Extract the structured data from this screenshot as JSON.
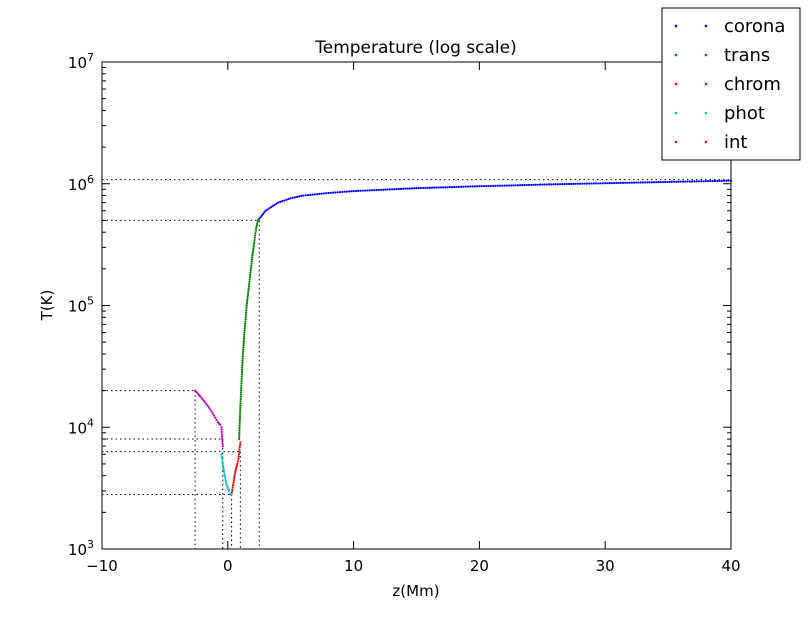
{
  "chart_data": {
    "type": "scatter",
    "title": "Temperature (log scale)",
    "xlabel": "z(Mm)",
    "ylabel": "T(K)",
    "xlim": [
      -10,
      40
    ],
    "ylim": [
      1000,
      10000000
    ],
    "yscale": "log",
    "grid": false,
    "legend_position": "top-right",
    "x_ticks": [
      {
        "value": -10,
        "label": "−10"
      },
      {
        "value": 0,
        "label": "0"
      },
      {
        "value": 10,
        "label": "10"
      },
      {
        "value": 20,
        "label": "20"
      },
      {
        "value": 30,
        "label": "30"
      },
      {
        "value": 40,
        "label": "40"
      }
    ],
    "y_ticks": [
      {
        "value": 1000,
        "base": "10",
        "exp": "3"
      },
      {
        "value": 10000,
        "base": "10",
        "exp": "4"
      },
      {
        "value": 100000,
        "base": "10",
        "exp": "5"
      },
      {
        "value": 1000000,
        "base": "10",
        "exp": "6"
      },
      {
        "value": 10000000,
        "base": "10",
        "exp": "7"
      }
    ],
    "series": [
      {
        "name": "corona",
        "color": "#0000ff",
        "points": [
          [
            2.4,
            500000
          ],
          [
            3.0,
            600000
          ],
          [
            4.0,
            700000
          ],
          [
            5.0,
            760000
          ],
          [
            6.0,
            800000
          ],
          [
            8.0,
            840000
          ],
          [
            10.0,
            870000
          ],
          [
            12.0,
            890000
          ],
          [
            15.0,
            920000
          ],
          [
            18.0,
            940000
          ],
          [
            20.0,
            955000
          ],
          [
            22.0,
            965000
          ],
          [
            25.0,
            985000
          ],
          [
            28.0,
            1000000
          ],
          [
            30.0,
            1010000
          ],
          [
            33.0,
            1025000
          ],
          [
            36.0,
            1040000
          ],
          [
            38.0,
            1050000
          ],
          [
            40.0,
            1060000
          ]
        ]
      },
      {
        "name": "trans",
        "color": "#008000",
        "points": [
          [
            0.9,
            8000
          ],
          [
            1.0,
            15000
          ],
          [
            1.1,
            25000
          ],
          [
            1.2,
            40000
          ],
          [
            1.35,
            65000
          ],
          [
            1.5,
            100000
          ],
          [
            1.7,
            150000
          ],
          [
            1.9,
            230000
          ],
          [
            2.1,
            330000
          ],
          [
            2.25,
            430000
          ],
          [
            2.4,
            500000
          ]
        ]
      },
      {
        "name": "chrom",
        "color": "#ff0000",
        "points": [
          [
            0.3,
            2800
          ],
          [
            0.45,
            3500
          ],
          [
            0.6,
            4300
          ],
          [
            0.75,
            5000
          ],
          [
            0.85,
            5500
          ],
          [
            0.9,
            6300
          ],
          [
            1.0,
            7500
          ]
        ]
      },
      {
        "name": "phot",
        "color": "#00bfbf",
        "points": [
          [
            -0.5,
            6000
          ],
          [
            -0.4,
            5000
          ],
          [
            -0.3,
            4300
          ],
          [
            -0.2,
            3800
          ],
          [
            -0.1,
            3400
          ],
          [
            0.0,
            3200
          ],
          [
            0.1,
            3000
          ],
          [
            0.2,
            2850
          ],
          [
            0.3,
            2800
          ]
        ]
      },
      {
        "name": "int",
        "color": "#bf00bf",
        "points": [
          [
            -2.6,
            20000
          ],
          [
            -2.4,
            19000
          ],
          [
            -2.2,
            18000
          ],
          [
            -2.0,
            17000
          ],
          [
            -1.8,
            16000
          ],
          [
            -1.6,
            15000
          ],
          [
            -1.4,
            14000
          ],
          [
            -1.2,
            13000
          ],
          [
            -1.0,
            12000
          ],
          [
            -0.8,
            11000
          ],
          [
            -0.6,
            10500
          ],
          [
            -0.5,
            10000
          ],
          [
            -0.45,
            8000
          ],
          [
            -0.4,
            7000
          ]
        ]
      }
    ],
    "reference_lines": [
      {
        "x": -2.6,
        "y": 20000
      },
      {
        "x": -0.4,
        "y": 8000
      },
      {
        "x": 0.3,
        "y": 2800
      },
      {
        "x": 1.0,
        "y": 6300
      },
      {
        "x": 2.5,
        "y": 500000
      },
      {
        "x": 40,
        "y": 1080000
      }
    ]
  }
}
